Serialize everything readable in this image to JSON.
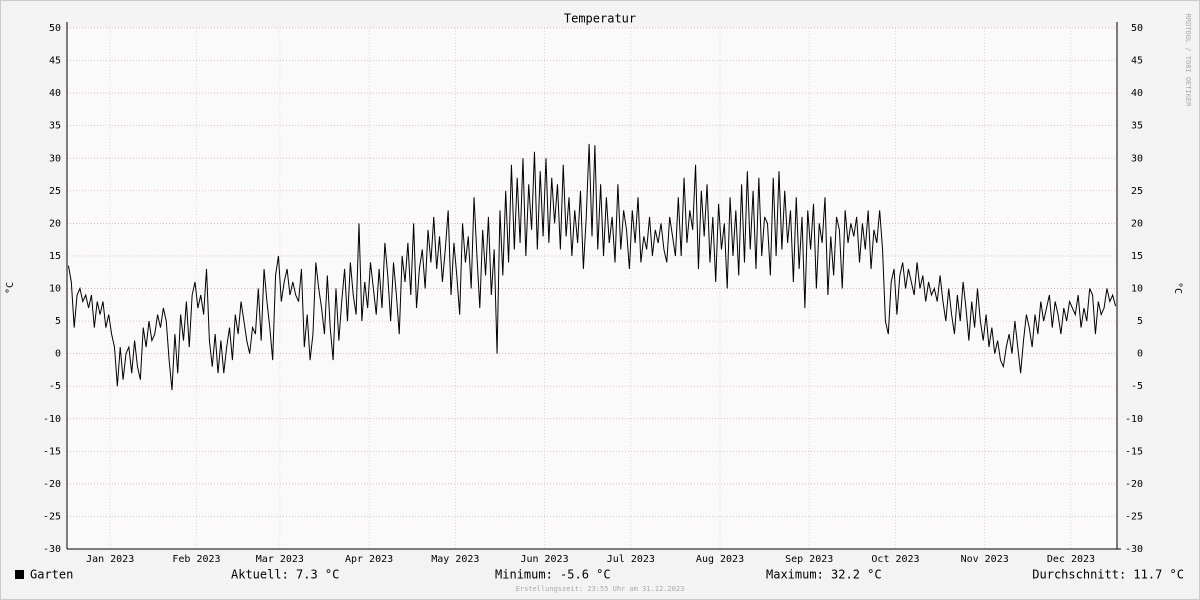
{
  "chart_data": {
    "type": "line",
    "title": "Temperatur",
    "y_label": "°C",
    "y2_label": "°C",
    "watermark": "RRDTOOL / TOBI OETIKER",
    "footer": "Erstellungszeit: 23:55 Uhr am 31.12.2023",
    "stats": [
      "Aktuell: 7.3 °C",
      "Minimum: -5.6 °C",
      "Maximum: 32.2 °C",
      "Durchschnitt: 11.7 °C"
    ],
    "xlim": [
      0,
      365
    ],
    "xticks": [
      {
        "value": 15,
        "label": "Jan 2023"
      },
      {
        "value": 45,
        "label": "Feb 2023"
      },
      {
        "value": 74,
        "label": "Mar 2023"
      },
      {
        "value": 105,
        "label": "Apr 2023"
      },
      {
        "value": 135,
        "label": "May 2023"
      },
      {
        "value": 166,
        "label": "Jun 2023"
      },
      {
        "value": 196,
        "label": "Jul 2023"
      },
      {
        "value": 227,
        "label": "Aug 2023"
      },
      {
        "value": 258,
        "label": "Sep 2023"
      },
      {
        "value": 288,
        "label": "Oct 2023"
      },
      {
        "value": 319,
        "label": "Nov 2023"
      },
      {
        "value": 349,
        "label": "Dec 2023"
      }
    ],
    "ylim": [
      -30,
      50
    ],
    "yticks": [
      -30,
      -25,
      -20,
      -15,
      -10,
      -5,
      0,
      5,
      10,
      15,
      20,
      25,
      30,
      35,
      40,
      45,
      50
    ],
    "grid": true,
    "series": [
      {
        "name": "Garten",
        "color": "#000000",
        "values": [
          13.5,
          11,
          4,
          9,
          10,
          8,
          9,
          7,
          9,
          4,
          8,
          6,
          8,
          4,
          6,
          3,
          1,
          -5,
          1,
          -4,
          0,
          1,
          -3,
          2,
          -2,
          -4,
          4,
          1,
          5,
          2,
          3,
          6,
          4,
          7,
          5,
          -1,
          -5.6,
          3,
          -3,
          6,
          2,
          8,
          1,
          9,
          11,
          7,
          9,
          6,
          13,
          2,
          -2,
          3,
          -3,
          2,
          -3,
          1,
          4,
          -1,
          6,
          3,
          8,
          5,
          2,
          0,
          4,
          3,
          10,
          2,
          13,
          8,
          4,
          -1,
          12,
          15,
          8,
          11,
          13,
          9,
          11,
          9,
          8,
          13,
          1,
          6,
          -1,
          3,
          14,
          10,
          7,
          3,
          12,
          4,
          -1,
          10,
          2,
          8,
          13,
          5,
          14,
          9,
          6,
          20,
          5,
          11,
          7,
          14,
          10,
          6,
          13,
          7,
          17,
          12,
          5,
          14,
          9,
          3,
          15,
          11,
          17,
          9,
          20,
          7,
          13,
          16,
          10,
          19,
          14,
          21,
          13,
          18,
          11,
          16,
          22,
          9,
          17,
          12,
          6,
          20,
          14,
          18,
          10,
          24,
          15,
          7,
          19,
          12,
          21,
          9,
          16,
          0,
          22,
          12,
          25,
          14,
          29,
          16,
          27,
          17,
          30,
          15,
          26,
          19,
          31,
          16,
          28,
          18,
          30,
          17,
          27,
          20,
          26,
          16,
          29,
          18,
          24,
          15,
          22,
          17,
          25,
          13,
          21,
          32.2,
          18,
          32,
          16,
          26,
          15,
          24,
          17,
          21,
          14,
          26,
          16,
          22,
          19,
          13,
          22,
          17,
          24,
          14,
          18,
          16,
          21,
          15,
          19,
          17,
          20,
          16,
          14,
          21,
          18,
          15,
          24,
          15,
          27,
          17,
          22,
          19,
          29,
          13,
          25,
          18,
          26,
          14,
          21,
          11,
          23,
          16,
          20,
          10,
          24,
          15,
          22,
          12,
          26,
          14,
          28,
          16,
          25,
          13,
          27,
          15,
          21,
          20,
          12,
          27,
          15,
          28,
          16,
          25,
          17,
          22,
          11,
          24,
          13,
          21,
          7,
          22,
          16,
          23,
          10,
          20,
          17,
          24,
          9,
          18,
          12,
          21,
          19,
          10,
          22,
          17,
          20,
          18,
          21,
          14,
          20,
          16,
          22,
          13,
          19,
          17,
          22,
          16,
          5,
          3,
          11,
          13,
          6,
          12,
          14,
          10,
          13,
          11,
          9,
          14,
          10,
          12,
          8,
          11,
          9,
          10,
          8,
          12,
          8,
          5,
          10,
          6,
          3,
          9,
          5,
          11,
          7,
          2,
          8,
          4,
          10,
          5,
          2,
          6,
          1,
          4,
          0,
          2,
          -1,
          -2,
          1,
          3,
          0,
          5,
          1,
          -3,
          2,
          6,
          4,
          1,
          6,
          3,
          8,
          5,
          7,
          9,
          4,
          8,
          6,
          3,
          7,
          5,
          8,
          7,
          6,
          9,
          4,
          7,
          5,
          10,
          9,
          3,
          8,
          6,
          7,
          10,
          8,
          9,
          7.3
        ]
      }
    ]
  }
}
